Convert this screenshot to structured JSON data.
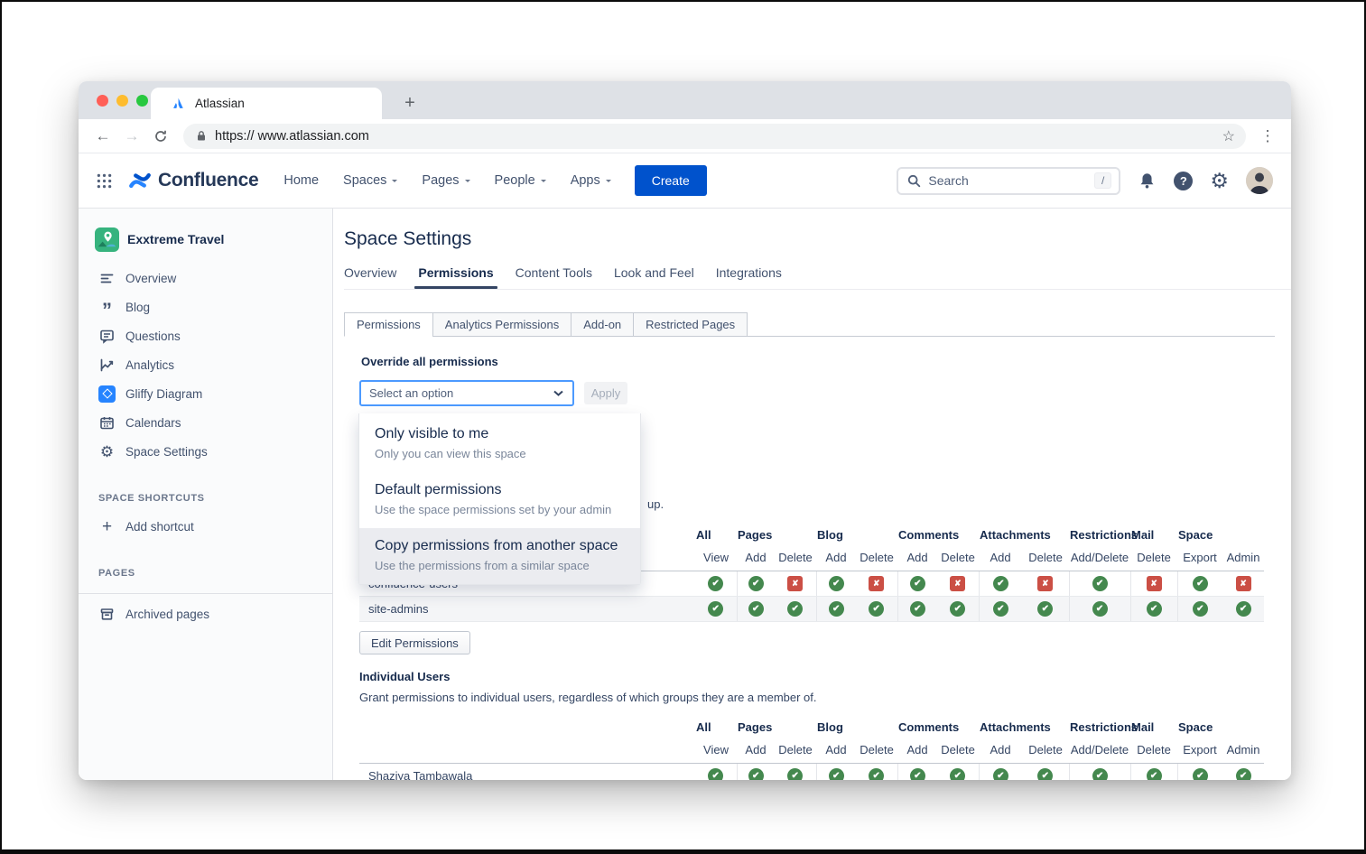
{
  "browser": {
    "tab_title": "Atlassian",
    "new_tab_label": "+",
    "url": "https:// www.atlassian.com"
  },
  "header": {
    "product_name": "Confluence",
    "nav_items": [
      {
        "label": "Home",
        "has_dropdown": false
      },
      {
        "label": "Spaces",
        "has_dropdown": true
      },
      {
        "label": "Pages",
        "has_dropdown": true
      },
      {
        "label": "People",
        "has_dropdown": true
      },
      {
        "label": "Apps",
        "has_dropdown": true
      }
    ],
    "create_label": "Create",
    "search": {
      "placeholder": "Search",
      "shortcut": "/"
    }
  },
  "sidebar": {
    "space_name": "Exxtreme Travel",
    "items": [
      {
        "label": "Overview"
      },
      {
        "label": "Blog"
      },
      {
        "label": "Questions"
      },
      {
        "label": "Analytics"
      },
      {
        "label": "Gliffy Diagram"
      },
      {
        "label": "Calendars"
      },
      {
        "label": "Space Settings"
      }
    ],
    "space_shortcuts_label": "SPACE SHORTCUTS",
    "add_shortcut_label": "Add shortcut",
    "pages_label": "PAGES",
    "archived_pages_label": "Archived pages"
  },
  "main": {
    "page_title": "Space Settings",
    "tabs": [
      "Overview",
      "Permissions",
      "Content Tools",
      "Look and Feel",
      "Integrations"
    ],
    "active_tab": "Permissions",
    "subtabs": [
      "Permissions",
      "Analytics Permissions",
      "Add-on",
      "Restricted Pages"
    ],
    "active_subtab": "Permissions",
    "override_label": "Override all permissions",
    "select_value": "Select an option",
    "apply_label": "Apply",
    "dropdown_options": [
      {
        "title": "Only visible to me",
        "description": "Only you can view this space",
        "highlighted": false
      },
      {
        "title": "Default permissions",
        "description": "Use the space permissions set by your admin",
        "highlighted": false
      },
      {
        "title": "Copy permissions from another space",
        "description": "Use the permissions from a similar space",
        "highlighted": true
      }
    ],
    "groups_text_visible_fragment": "up.",
    "permission_columns": {
      "groups": [
        {
          "label": "All",
          "span": 1
        },
        {
          "label": "Pages",
          "span": 2
        },
        {
          "label": "Blog",
          "span": 2
        },
        {
          "label": "Comments",
          "span": 2
        },
        {
          "label": "Attachments",
          "span": 2
        },
        {
          "label": "Restrictions",
          "span": 1
        },
        {
          "label": "Mail",
          "span": 1
        },
        {
          "label": "Space",
          "span": 2
        }
      ],
      "subcolumns": [
        "View",
        "Add",
        "Delete",
        "Add",
        "Delete",
        "Add",
        "Delete",
        "Add",
        "Delete",
        "Add/Delete",
        "Delete",
        "Export",
        "Admin"
      ]
    },
    "groups_table": {
      "rows": [
        {
          "name": "confluence-users",
          "perms": [
            "allow",
            "allow",
            "deny",
            "allow",
            "deny",
            "allow",
            "deny",
            "allow",
            "deny",
            "allow",
            "deny",
            "allow",
            "deny"
          ]
        },
        {
          "name": "site-admins",
          "perms": [
            "allow",
            "allow",
            "allow",
            "allow",
            "allow",
            "allow",
            "allow",
            "allow",
            "allow",
            "allow",
            "allow",
            "allow",
            "allow"
          ]
        }
      ]
    },
    "edit_permissions_label": "Edit Permissions",
    "individual_users": {
      "title": "Individual Users",
      "description": "Grant permissions to individual users, regardless of which groups they are a member of.",
      "rows": [
        {
          "name": "Shaziya Tambawala",
          "perms": [
            "allow",
            "allow",
            "allow",
            "allow",
            "allow",
            "allow",
            "allow",
            "allow",
            "allow",
            "allow",
            "allow",
            "allow",
            "allow"
          ]
        }
      ]
    }
  },
  "colors": {
    "accent_blue": "#0052CC",
    "select_focus_border": "#4C9AFF",
    "allow_green": "#44884E",
    "deny_red": "#CB4F45"
  }
}
